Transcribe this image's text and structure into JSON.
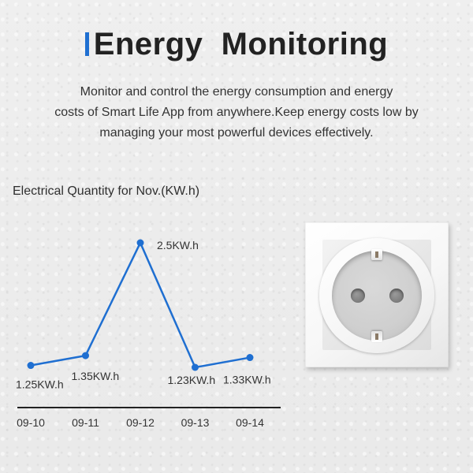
{
  "header": {
    "title": "Energy  Monitoring",
    "accent_color": "#1f6fd1"
  },
  "description": {
    "lines": [
      "Monitor and control the energy consumption and energy",
      "costs of Smart Life App from anywhere.Keep energy costs low by",
      "managing your most powerful devices effectively."
    ]
  },
  "chart_data": {
    "type": "line",
    "title": "Electrical Quantity for Nov.(KW.h)",
    "categories": [
      "09-10",
      "09-11",
      "09-12",
      "09-13",
      "09-14"
    ],
    "values": [
      1.25,
      1.35,
      2.5,
      1.23,
      1.33
    ],
    "data_labels": [
      "1.25KW.h",
      "1.35KW.h",
      "2.5KW.h",
      "1.23KW.h",
      "1.33KW.h"
    ],
    "line_color": "#1f6fd1",
    "grid": false
  },
  "product_image": {
    "icon": "power-socket-icon"
  }
}
